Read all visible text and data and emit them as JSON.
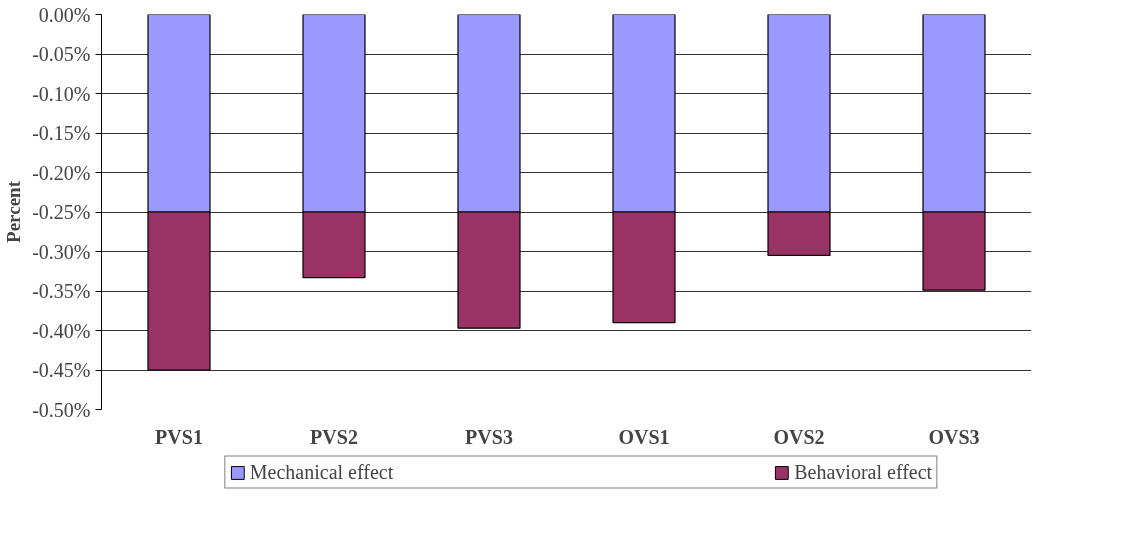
{
  "chart_data": {
    "type": "bar",
    "stacked": true,
    "ylabel": "Percent",
    "categories": [
      "PVS1",
      "PVS2",
      "PVS3",
      "OVS1",
      "OVS2",
      "OVS3"
    ],
    "series": [
      {
        "name": "Mechanical effect",
        "color": "#9999ff",
        "values": [
          -0.25,
          -0.25,
          -0.25,
          -0.25,
          -0.25,
          -0.25
        ]
      },
      {
        "name": "Behavioral effect",
        "color": "#993366",
        "values": [
          -0.2,
          -0.083,
          -0.147,
          -0.14,
          -0.055,
          -0.099
        ]
      }
    ],
    "ylim": [
      -0.5,
      0
    ],
    "yticks": [
      {
        "value": 0,
        "label": "0.00%"
      },
      {
        "value": -0.05,
        "label": "-0.05%"
      },
      {
        "value": -0.1,
        "label": "-0.10%"
      },
      {
        "value": -0.15,
        "label": "-0.15%"
      },
      {
        "value": -0.2,
        "label": "-0.20%"
      },
      {
        "value": -0.25,
        "label": "-0.25%"
      },
      {
        "value": -0.3,
        "label": "-0.30%"
      },
      {
        "value": -0.35,
        "label": "-0.35%"
      },
      {
        "value": -0.4,
        "label": "-0.40%"
      },
      {
        "value": -0.45,
        "label": "-0.45%"
      },
      {
        "value": -0.5,
        "label": "-0.50%"
      }
    ],
    "grid": "y",
    "legend": "bottom"
  }
}
